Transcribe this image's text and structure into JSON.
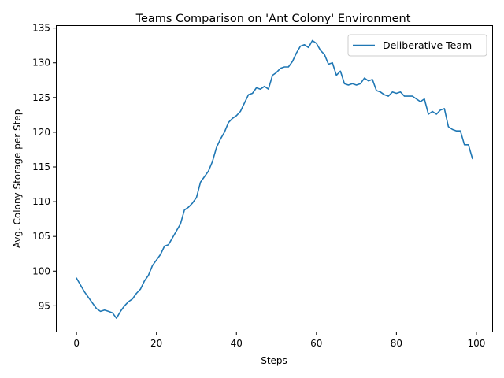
{
  "chart_data": {
    "type": "line",
    "title": "Teams Comparison on 'Ant Colony' Environment",
    "xlabel": "Steps",
    "ylabel": "Avg. Colony Storage per Step",
    "xlim": [
      -4.95,
      103.95
    ],
    "ylim": [
      91.3,
      135.3
    ],
    "xticks": [
      0,
      20,
      40,
      60,
      80,
      100
    ],
    "yticks": [
      95,
      100,
      105,
      110,
      115,
      120,
      125,
      130,
      135
    ],
    "legend": "top-right",
    "grid": false,
    "series": [
      {
        "name": "Deliberative Team",
        "color": "#1f77b4",
        "x": [
          0,
          1,
          2,
          3,
          4,
          5,
          6,
          7,
          8,
          9,
          10,
          11,
          12,
          13,
          14,
          15,
          16,
          17,
          18,
          19,
          20,
          21,
          22,
          23,
          24,
          25,
          26,
          27,
          28,
          29,
          30,
          31,
          32,
          33,
          34,
          35,
          36,
          37,
          38,
          39,
          40,
          41,
          42,
          43,
          44,
          45,
          46,
          47,
          48,
          49,
          50,
          51,
          52,
          53,
          54,
          55,
          56,
          57,
          58,
          59,
          60,
          61,
          62,
          63,
          64,
          65,
          66,
          67,
          68,
          69,
          70,
          71,
          72,
          73,
          74,
          75,
          76,
          77,
          78,
          79,
          80,
          81,
          82,
          83,
          84,
          85,
          86,
          87,
          88,
          89,
          90,
          91,
          92,
          93,
          94,
          95,
          96,
          97,
          98,
          99
        ],
        "values": [
          99.0,
          98.0,
          97.0,
          96.2,
          95.4,
          94.6,
          94.2,
          94.4,
          94.2,
          94.0,
          93.2,
          94.2,
          95.0,
          95.6,
          96.0,
          96.8,
          97.4,
          98.6,
          99.4,
          100.8,
          101.6,
          102.4,
          103.6,
          103.8,
          104.8,
          105.8,
          106.8,
          108.8,
          109.2,
          109.8,
          110.6,
          112.8,
          113.6,
          114.4,
          115.8,
          117.8,
          119.0,
          120.0,
          121.4,
          122.0,
          122.4,
          123.0,
          124.2,
          125.4,
          125.6,
          126.4,
          126.2,
          126.6,
          126.2,
          128.2,
          128.6,
          129.2,
          129.4,
          129.4,
          130.2,
          131.4,
          132.4,
          132.6,
          132.2,
          133.2,
          132.8,
          131.8,
          131.2,
          129.8,
          130.0,
          128.2,
          128.8,
          127.0,
          126.8,
          127.0,
          126.8,
          127.0,
          127.8,
          127.4,
          127.6,
          126.0,
          125.8,
          125.4,
          125.2,
          125.8,
          125.6,
          125.8,
          125.2,
          125.2,
          125.2,
          124.8,
          124.4,
          124.8,
          122.6,
          123.0,
          122.6,
          123.2,
          123.4,
          120.8,
          120.4,
          120.2,
          120.2,
          118.2,
          118.2,
          116.2
        ]
      }
    ]
  }
}
